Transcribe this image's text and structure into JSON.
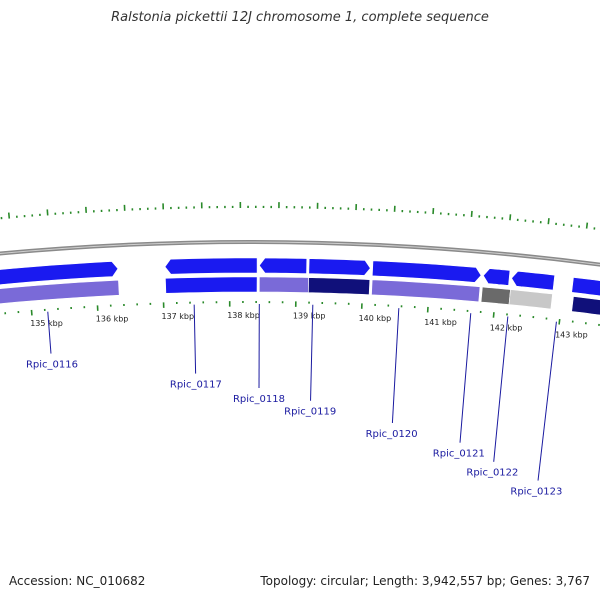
{
  "title": "Ralstonia pickettii 12J chromosome 1, complete sequence",
  "accession": "Accession: NC_010682",
  "summary": "Topology: circular; Length: 3,942,557 bp; Genes: 3,767",
  "colors": {
    "backbone": "#8a8a8a",
    "tick": "#2a8a2a",
    "gene_blue": "#1a1af0",
    "gene_lavender": "#7a6ad8",
    "gene_navy": "#10107a",
    "gene_gray_dark": "#6a6a6a",
    "gene_gray_light": "#c8c8c8",
    "label": "#1a1aa0"
  },
  "kbp_ticks": [
    "135 kbp",
    "136 kbp",
    "137 kbp",
    "138 kbp",
    "139 kbp",
    "140 kbp",
    "141 kbp",
    "142 kbp",
    "143 kbp"
  ],
  "gene_labels": [
    "Rpic_0116",
    "Rpic_0117",
    "Rpic_0118",
    "Rpic_0119",
    "Rpic_0120",
    "Rpic_0121",
    "Rpic_0122",
    "Rpic_0123"
  ]
}
